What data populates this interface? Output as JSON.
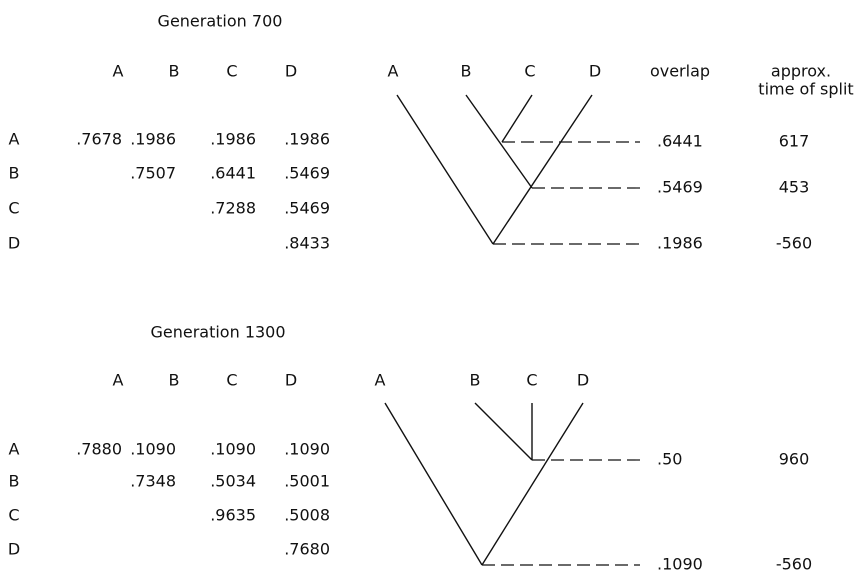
{
  "panels": [
    {
      "title": "Generation 700",
      "columns": [
        "A",
        "B",
        "C",
        "D"
      ],
      "rows": [
        {
          "label": "A",
          "cells": [
            ".7678",
            ".1986",
            ".1986",
            ".1986"
          ]
        },
        {
          "label": "B",
          "cells": [
            ".7507",
            ".6441",
            ".5469"
          ]
        },
        {
          "label": "C",
          "cells": [
            ".7288",
            ".5469"
          ]
        },
        {
          "label": "D",
          "cells": [
            ".8433"
          ]
        }
      ],
      "tree_leaves": [
        "A",
        "B",
        "C",
        "D"
      ],
      "split_header": {
        "overlap": "overlap",
        "time": [
          "approx.",
          "time of split"
        ]
      },
      "splits": [
        {
          "overlap": ".6441",
          "time": "617"
        },
        {
          "overlap": ".5469",
          "time": "453"
        },
        {
          "overlap": ".1986",
          "time": "-560"
        }
      ]
    },
    {
      "title": "Generation 1300",
      "columns": [
        "A",
        "B",
        "C",
        "D"
      ],
      "rows": [
        {
          "label": "A",
          "cells": [
            ".7880",
            ".1090",
            ".1090",
            ".1090"
          ]
        },
        {
          "label": "B",
          "cells": [
            ".7348",
            ".5034",
            ".5001"
          ]
        },
        {
          "label": "C",
          "cells": [
            ".9635",
            ".5008"
          ]
        },
        {
          "label": "D",
          "cells": [
            ".7680"
          ]
        }
      ],
      "tree_leaves": [
        "A",
        "B",
        "C",
        "D"
      ],
      "splits": [
        {
          "overlap": ".50",
          "time": "960"
        },
        {
          "overlap": ".1090",
          "time": "-560"
        }
      ]
    }
  ]
}
